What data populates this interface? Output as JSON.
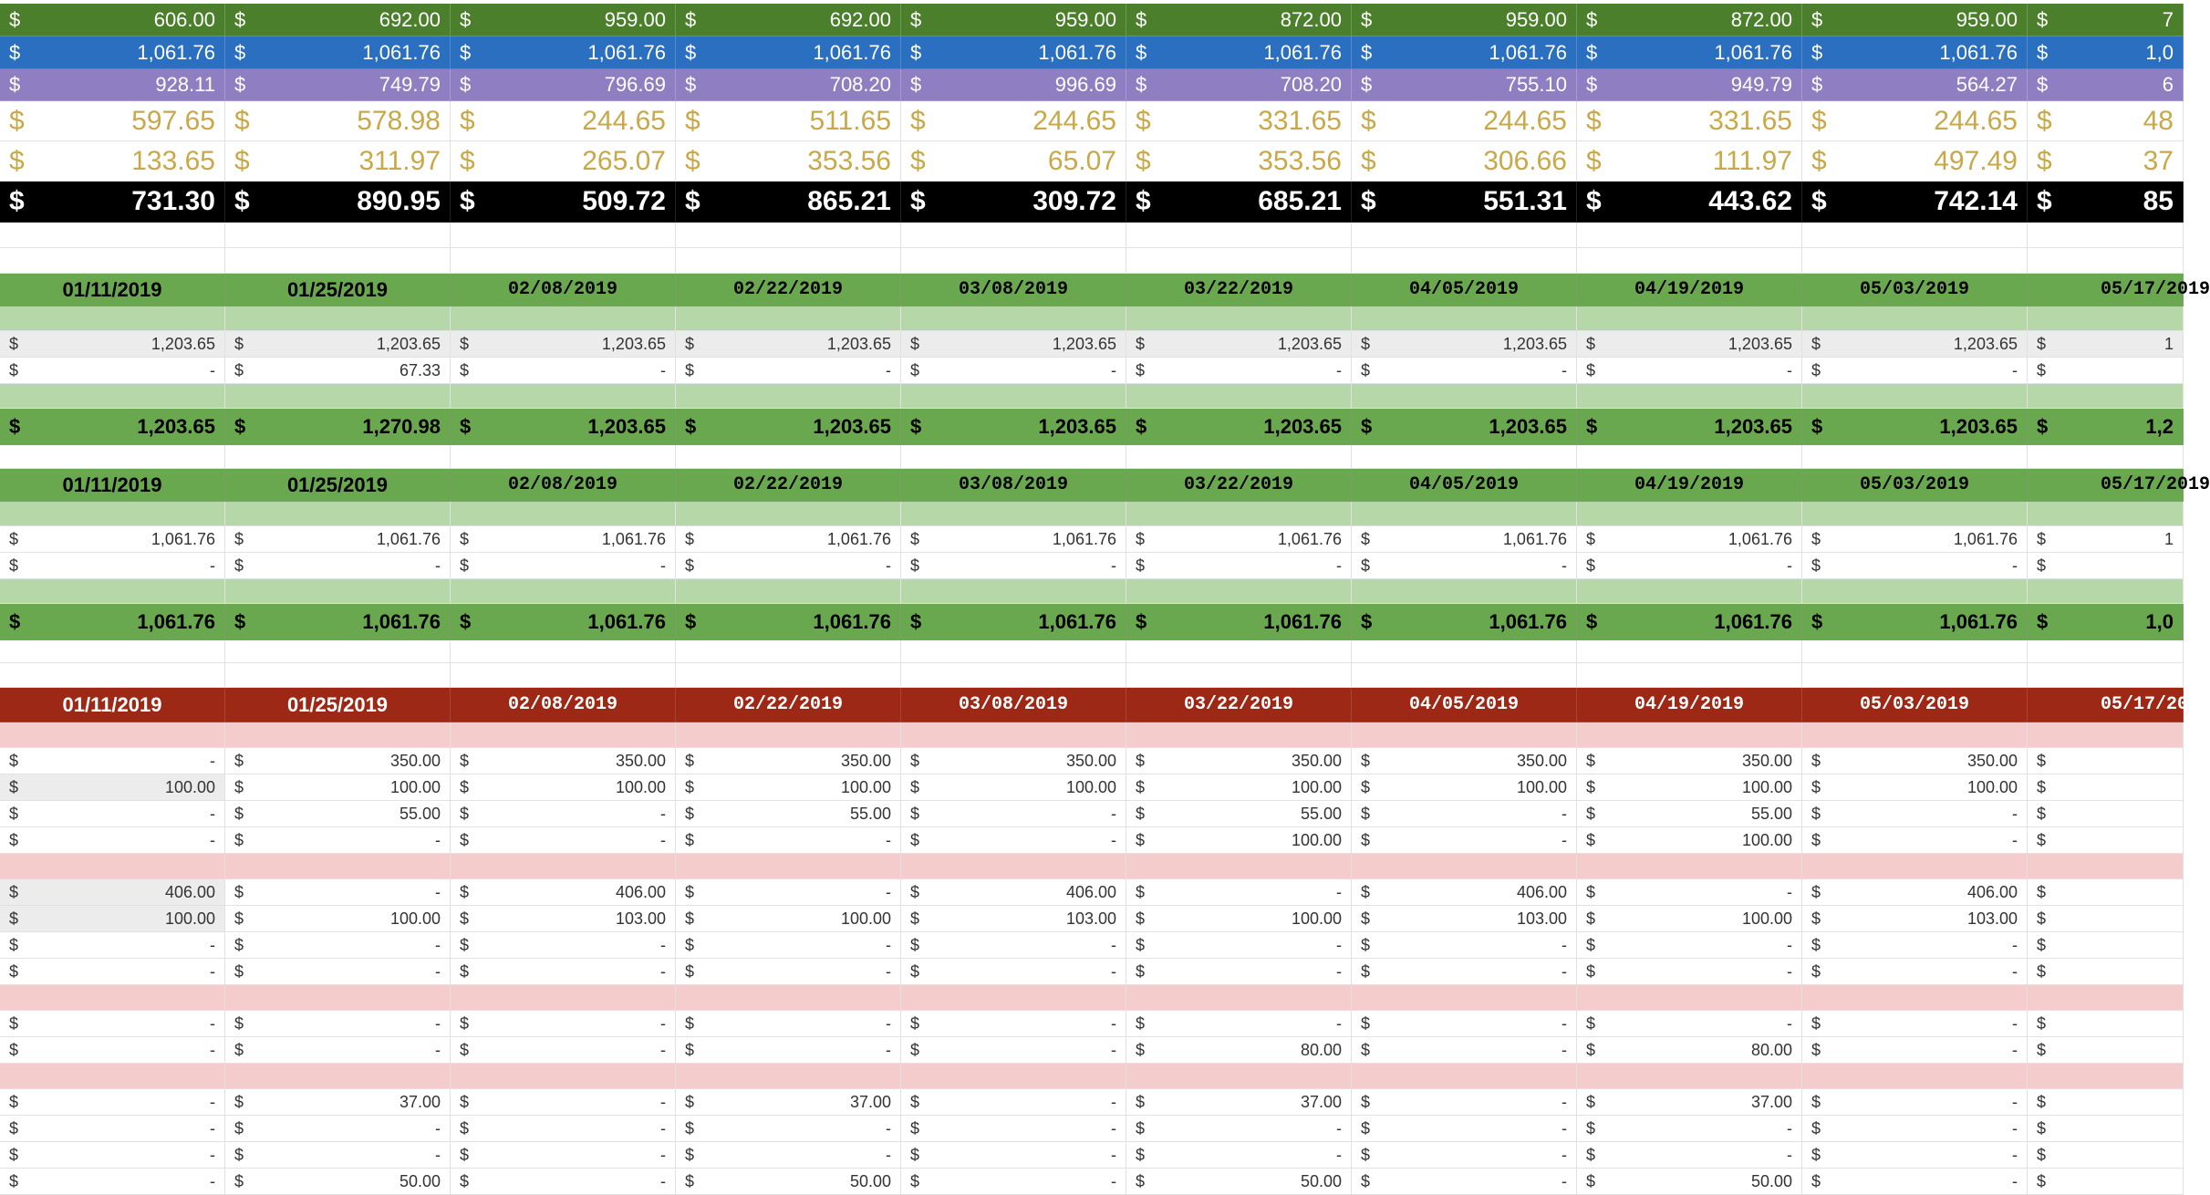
{
  "colors": {
    "band_green": "#4c7f2c",
    "band_blue": "#2b6fc0",
    "band_purple": "#8f7fc2",
    "gold_text": "#c8a848",
    "total_black": "#000000",
    "header_green": "#6aa84f",
    "subheader_light_green": "#b6d7a8",
    "header_red": "#9e2816",
    "subheader_light_red": "#f4cccc",
    "shaded_cell": "#ececec",
    "grid": "#e1e1e1"
  },
  "currency": "$",
  "dates": [
    "01/11/2019",
    "01/25/2019",
    "02/08/2019",
    "02/22/2019",
    "03/08/2019",
    "03/22/2019",
    "04/05/2019",
    "04/19/2019",
    "05/03/2019",
    "05/17/2019"
  ],
  "top_summary": {
    "rows": [
      {
        "style": "band_green",
        "values": [
          "606.00",
          "692.00",
          "959.00",
          "692.00",
          "959.00",
          "872.00",
          "959.00",
          "872.00",
          "959.00",
          "7"
        ]
      },
      {
        "style": "band_blue",
        "values": [
          "1,061.76",
          "1,061.76",
          "1,061.76",
          "1,061.76",
          "1,061.76",
          "1,061.76",
          "1,061.76",
          "1,061.76",
          "1,061.76",
          "1,0"
        ]
      },
      {
        "style": "band_purple",
        "values": [
          "928.11",
          "749.79",
          "796.69",
          "708.20",
          "996.69",
          "708.20",
          "755.10",
          "949.79",
          "564.27",
          "6"
        ]
      },
      {
        "style": "gold",
        "values": [
          "597.65",
          "578.98",
          "244.65",
          "511.65",
          "244.65",
          "331.65",
          "244.65",
          "331.65",
          "244.65",
          "48"
        ]
      },
      {
        "style": "gold",
        "values": [
          "133.65",
          "311.97",
          "265.07",
          "353.56",
          "65.07",
          "353.56",
          "306.66",
          "111.97",
          "497.49",
          "37"
        ]
      },
      {
        "style": "black",
        "values": [
          "731.30",
          "890.95",
          "509.72",
          "865.21",
          "309.72",
          "685.21",
          "551.31",
          "443.62",
          "742.14",
          "85"
        ]
      }
    ]
  },
  "income_table": {
    "rows": [
      {
        "shaded_first_row": true,
        "values": [
          "1,203.65",
          "1,203.65",
          "1,203.65",
          "1,203.65",
          "1,203.65",
          "1,203.65",
          "1,203.65",
          "1,203.65",
          "1,203.65",
          "1"
        ]
      },
      {
        "values": [
          "-",
          "67.33",
          "-",
          "-",
          "-",
          "-",
          "-",
          "-",
          "-",
          ""
        ]
      }
    ],
    "total": [
      "1,203.65",
      "1,270.98",
      "1,203.65",
      "1,203.65",
      "1,203.65",
      "1,203.65",
      "1,203.65",
      "1,203.65",
      "1,203.65",
      "1,2"
    ]
  },
  "paycheck_table": {
    "rows": [
      {
        "values": [
          "1,061.76",
          "1,061.76",
          "1,061.76",
          "1,061.76",
          "1,061.76",
          "1,061.76",
          "1,061.76",
          "1,061.76",
          "1,061.76",
          "1"
        ]
      },
      {
        "values": [
          "-",
          "-",
          "-",
          "-",
          "-",
          "-",
          "-",
          "-",
          "-",
          ""
        ]
      }
    ],
    "total": [
      "1,061.76",
      "1,061.76",
      "1,061.76",
      "1,061.76",
      "1,061.76",
      "1,061.76",
      "1,061.76",
      "1,061.76",
      "1,061.76",
      "1,0"
    ]
  },
  "expense_table": {
    "groups": [
      {
        "rows": [
          {
            "values": [
              "-",
              "350.00",
              "350.00",
              "350.00",
              "350.00",
              "350.00",
              "350.00",
              "350.00",
              "350.00",
              ""
            ]
          },
          {
            "shaded_first": true,
            "values": [
              "100.00",
              "100.00",
              "100.00",
              "100.00",
              "100.00",
              "100.00",
              "100.00",
              "100.00",
              "100.00",
              ""
            ]
          },
          {
            "values": [
              "-",
              "55.00",
              "-",
              "55.00",
              "-",
              "55.00",
              "-",
              "55.00",
              "-",
              ""
            ]
          },
          {
            "values": [
              "-",
              "-",
              "-",
              "-",
              "-",
              "100.00",
              "-",
              "100.00",
              "-",
              ""
            ]
          }
        ]
      },
      {
        "rows": [
          {
            "shaded_first": true,
            "values": [
              "406.00",
              "-",
              "406.00",
              "-",
              "406.00",
              "-",
              "406.00",
              "-",
              "406.00",
              ""
            ]
          },
          {
            "shaded_first": true,
            "values": [
              "100.00",
              "100.00",
              "103.00",
              "100.00",
              "103.00",
              "100.00",
              "103.00",
              "100.00",
              "103.00",
              ""
            ]
          },
          {
            "values": [
              "-",
              "-",
              "-",
              "-",
              "-",
              "-",
              "-",
              "-",
              "-",
              ""
            ]
          },
          {
            "values": [
              "-",
              "-",
              "-",
              "-",
              "-",
              "-",
              "-",
              "-",
              "-",
              ""
            ]
          }
        ]
      },
      {
        "rows": [
          {
            "values": [
              "-",
              "-",
              "-",
              "-",
              "-",
              "-",
              "-",
              "-",
              "-",
              ""
            ]
          },
          {
            "values": [
              "-",
              "-",
              "-",
              "-",
              "-",
              "80.00",
              "-",
              "80.00",
              "-",
              ""
            ]
          }
        ]
      },
      {
        "rows": [
          {
            "values": [
              "-",
              "37.00",
              "-",
              "37.00",
              "-",
              "37.00",
              "-",
              "37.00",
              "-",
              ""
            ]
          },
          {
            "values": [
              "-",
              "-",
              "-",
              "-",
              "-",
              "-",
              "-",
              "-",
              "-",
              ""
            ]
          },
          {
            "values": [
              "-",
              "-",
              "-",
              "-",
              "-",
              "-",
              "-",
              "-",
              "-",
              ""
            ]
          },
          {
            "values": [
              "-",
              "50.00",
              "-",
              "50.00",
              "-",
              "50.00",
              "-",
              "50.00",
              "-",
              ""
            ]
          }
        ]
      }
    ]
  }
}
